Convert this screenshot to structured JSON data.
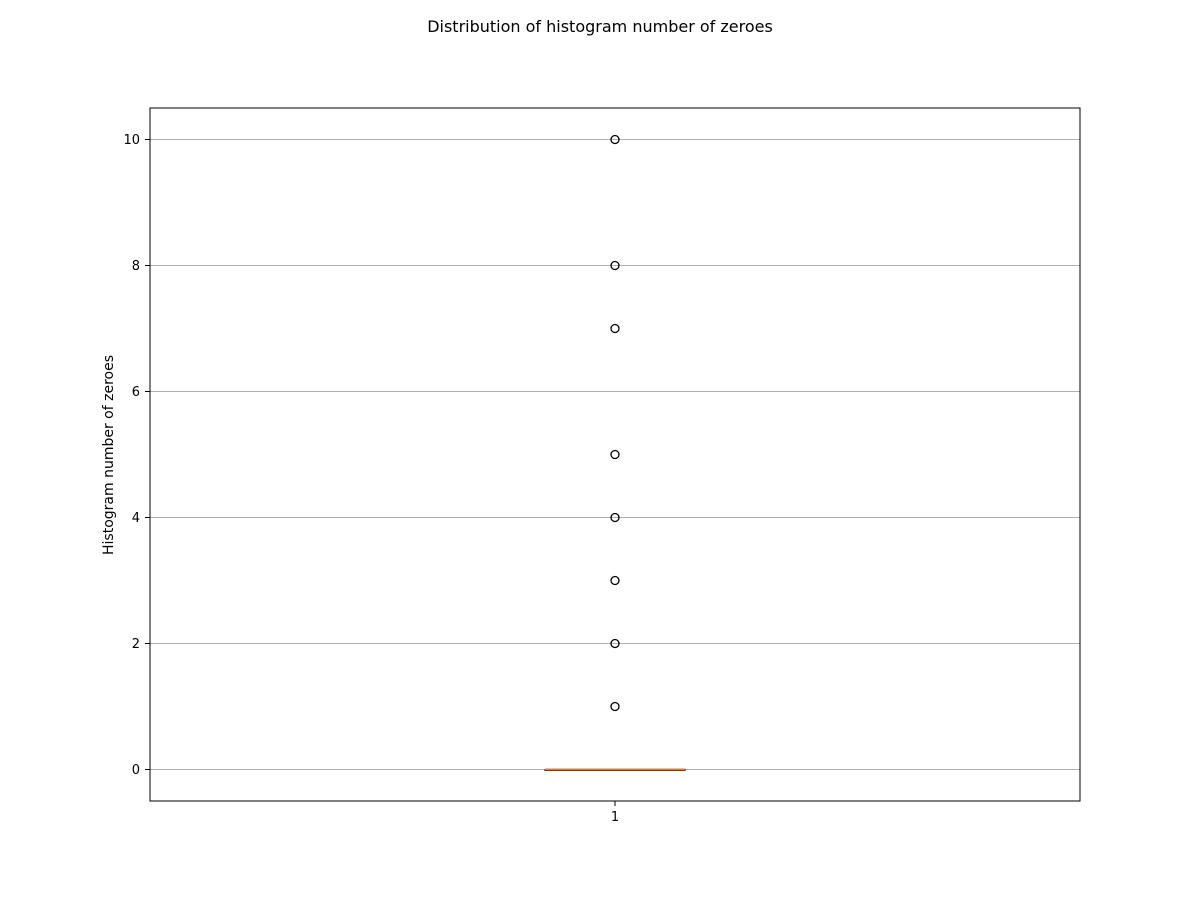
{
  "chart_data": {
    "type": "boxplot",
    "title": "Distribution of histogram number of zeroes",
    "xlabel": "",
    "ylabel": "Histogram number of zeroes",
    "categories": [
      "1"
    ],
    "ylim": [
      -0.5,
      10.5
    ],
    "yticks": [
      0,
      2,
      4,
      6,
      8,
      10
    ],
    "grid": {
      "y": true,
      "x": false
    },
    "boxes": [
      {
        "name": "1",
        "min": 0,
        "q1": 0,
        "median": 0,
        "q3": 0,
        "max": 0,
        "outliers": [
          1,
          2,
          3,
          4,
          5,
          7,
          8,
          10
        ]
      }
    ],
    "colors": {
      "median": "#e07b39",
      "box": "#000000",
      "grid": "#b0b0b0"
    }
  }
}
